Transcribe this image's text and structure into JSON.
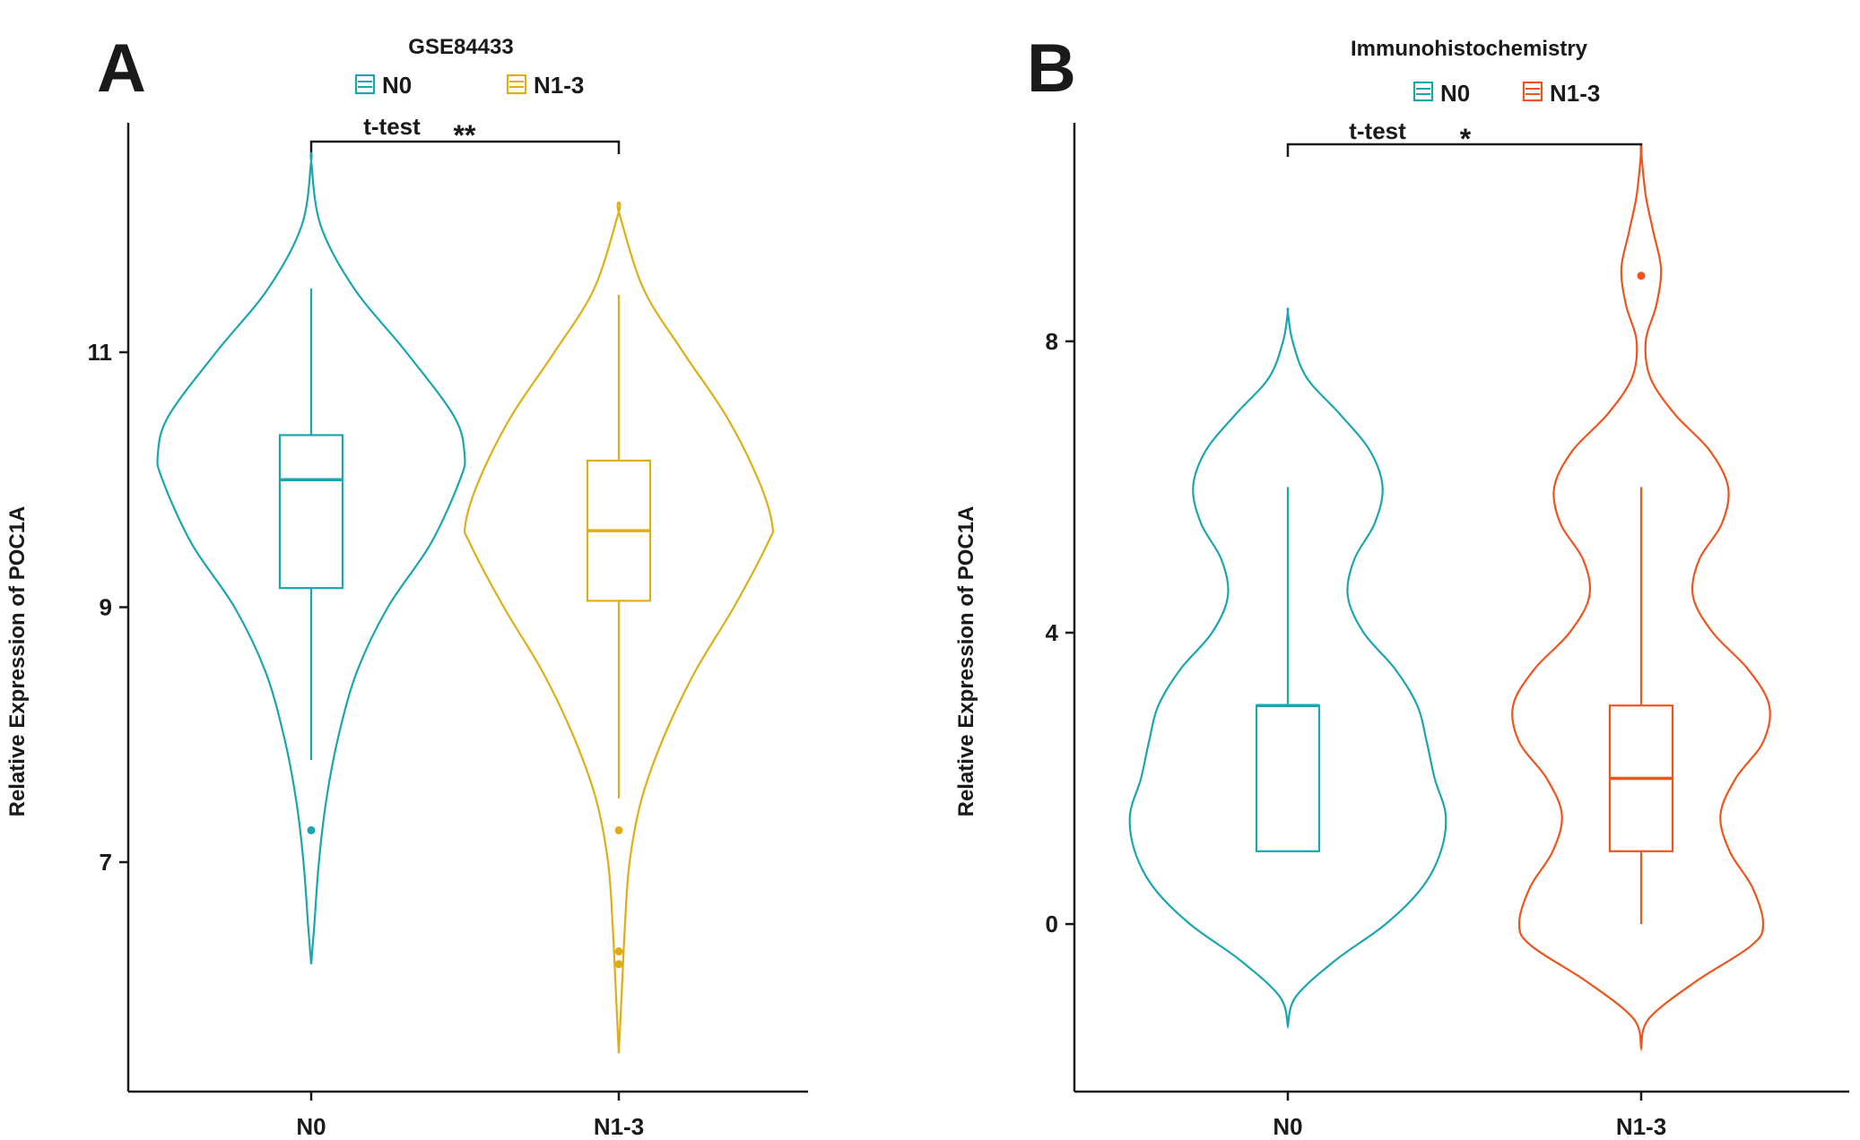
{
  "panels": [
    {
      "letter": "A",
      "title": "GSE84433",
      "ylabel": "Relative Expression of POC1A",
      "test_label": "t-test",
      "significance": "**",
      "legend": [
        {
          "label": "N0",
          "color": "#1aa6b0"
        },
        {
          "label": "N1-3",
          "color": "#e0ae14"
        }
      ]
    },
    {
      "letter": "B",
      "title": "Immunohistochemistry",
      "ylabel": "Relative Expression of POC1A",
      "test_label": "t-test",
      "significance": "*",
      "legend": [
        {
          "label": "N0",
          "color": "#1aa6b0"
        },
        {
          "label": "N1-3",
          "color": "#f0541c"
        }
      ]
    }
  ],
  "chart_data": [
    {
      "type": "violin",
      "title": "GSE84433",
      "xlabel": "",
      "ylabel": "Relative Expression of POC1A",
      "categories": [
        "N0",
        "N1-3"
      ],
      "yticks": [
        7,
        9,
        11
      ],
      "ylim": [
        5.2,
        12.8
      ],
      "grid": false,
      "legend_position": "top",
      "series": [
        {
          "name": "N0",
          "color": "#1aa6b0",
          "violin_range": [
            6.2,
            12.5
          ],
          "box": {
            "q1": 9.15,
            "median": 10.0,
            "q3": 10.35,
            "whisker_low": 7.8,
            "whisker_high": 11.5
          },
          "outliers": [
            7.25
          ],
          "density_profile": [
            [
              6.2,
              0
            ],
            [
              6.5,
              0.02
            ],
            [
              7.0,
              0.05
            ],
            [
              7.5,
              0.1
            ],
            [
              8.0,
              0.18
            ],
            [
              8.5,
              0.3
            ],
            [
              9.0,
              0.5
            ],
            [
              9.5,
              0.78
            ],
            [
              10.0,
              0.97
            ],
            [
              10.2,
              1.0
            ],
            [
              10.5,
              0.93
            ],
            [
              11.0,
              0.62
            ],
            [
              11.5,
              0.28
            ],
            [
              12.0,
              0.06
            ],
            [
              12.5,
              0
            ]
          ]
        },
        {
          "name": "N1-3",
          "color": "#e0ae14",
          "violin_range": [
            5.5,
            12.1
          ],
          "box": {
            "q1": 9.05,
            "median": 9.6,
            "q3": 10.15,
            "whisker_low": 7.5,
            "whisker_high": 11.45
          },
          "outliers": [
            7.25,
            6.3,
            6.2
          ],
          "density_profile": [
            [
              5.5,
              0
            ],
            [
              6.0,
              0.02
            ],
            [
              6.5,
              0.04
            ],
            [
              7.0,
              0.07
            ],
            [
              7.5,
              0.15
            ],
            [
              8.0,
              0.3
            ],
            [
              8.5,
              0.5
            ],
            [
              9.0,
              0.75
            ],
            [
              9.5,
              0.97
            ],
            [
              9.65,
              1.0
            ],
            [
              10.0,
              0.91
            ],
            [
              10.5,
              0.7
            ],
            [
              11.0,
              0.42
            ],
            [
              11.5,
              0.16
            ],
            [
              12.1,
              0
            ]
          ]
        }
      ]
    },
    {
      "type": "violin",
      "title": "Immunohistochemistry",
      "xlabel": "",
      "ylabel": "Relative Expression of POC1A",
      "categories": [
        "N0",
        "N1-3"
      ],
      "yticks": [
        0,
        4,
        8
      ],
      "ylim": [
        -2.3,
        11.0
      ],
      "grid": false,
      "legend_position": "top",
      "series": [
        {
          "name": "N0",
          "color": "#1aa6b0",
          "violin_range": [
            -1.4,
            8.4
          ],
          "box": {
            "q1": 1.0,
            "median": 3.0,
            "q3": 3.0,
            "whisker_low": 1.0,
            "whisker_high": 6.0
          },
          "outliers": [],
          "density_profile": [
            [
              -1.4,
              0
            ],
            [
              -1.0,
              0.05
            ],
            [
              -0.5,
              0.3
            ],
            [
              0.0,
              0.62
            ],
            [
              0.5,
              0.85
            ],
            [
              1.0,
              0.97
            ],
            [
              1.5,
              1.0
            ],
            [
              2.0,
              0.93
            ],
            [
              2.5,
              0.88
            ],
            [
              3.0,
              0.82
            ],
            [
              3.5,
              0.68
            ],
            [
              4.0,
              0.48
            ],
            [
              4.5,
              0.38
            ],
            [
              5.0,
              0.42
            ],
            [
              5.5,
              0.55
            ],
            [
              6.0,
              0.6
            ],
            [
              6.5,
              0.52
            ],
            [
              7.0,
              0.33
            ],
            [
              7.5,
              0.12
            ],
            [
              8.0,
              0.03
            ],
            [
              8.4,
              0
            ]
          ]
        },
        {
          "name": "N1-3",
          "color": "#f0541c",
          "violin_range": [
            -1.7,
            10.6
          ],
          "box": {
            "q1": 1.0,
            "median": 2.0,
            "q3": 3.0,
            "whisker_low": 0.0,
            "whisker_high": 6.0
          },
          "outliers": [
            8.9
          ],
          "density_profile": [
            [
              -1.7,
              0
            ],
            [
              -1.3,
              0.05
            ],
            [
              -0.8,
              0.35
            ],
            [
              -0.3,
              0.72
            ],
            [
              0.0,
              0.8
            ],
            [
              0.5,
              0.73
            ],
            [
              1.0,
              0.58
            ],
            [
              1.5,
              0.52
            ],
            [
              2.0,
              0.62
            ],
            [
              2.5,
              0.8
            ],
            [
              3.0,
              0.84
            ],
            [
              3.5,
              0.7
            ],
            [
              4.0,
              0.47
            ],
            [
              4.5,
              0.34
            ],
            [
              5.0,
              0.38
            ],
            [
              5.5,
              0.53
            ],
            [
              6.0,
              0.57
            ],
            [
              6.5,
              0.45
            ],
            [
              7.0,
              0.22
            ],
            [
              7.5,
              0.06
            ],
            [
              8.0,
              0.03
            ],
            [
              8.5,
              0.1
            ],
            [
              9.0,
              0.13
            ],
            [
              9.5,
              0.08
            ],
            [
              10.0,
              0.03
            ],
            [
              10.6,
              0
            ]
          ]
        }
      ]
    }
  ]
}
